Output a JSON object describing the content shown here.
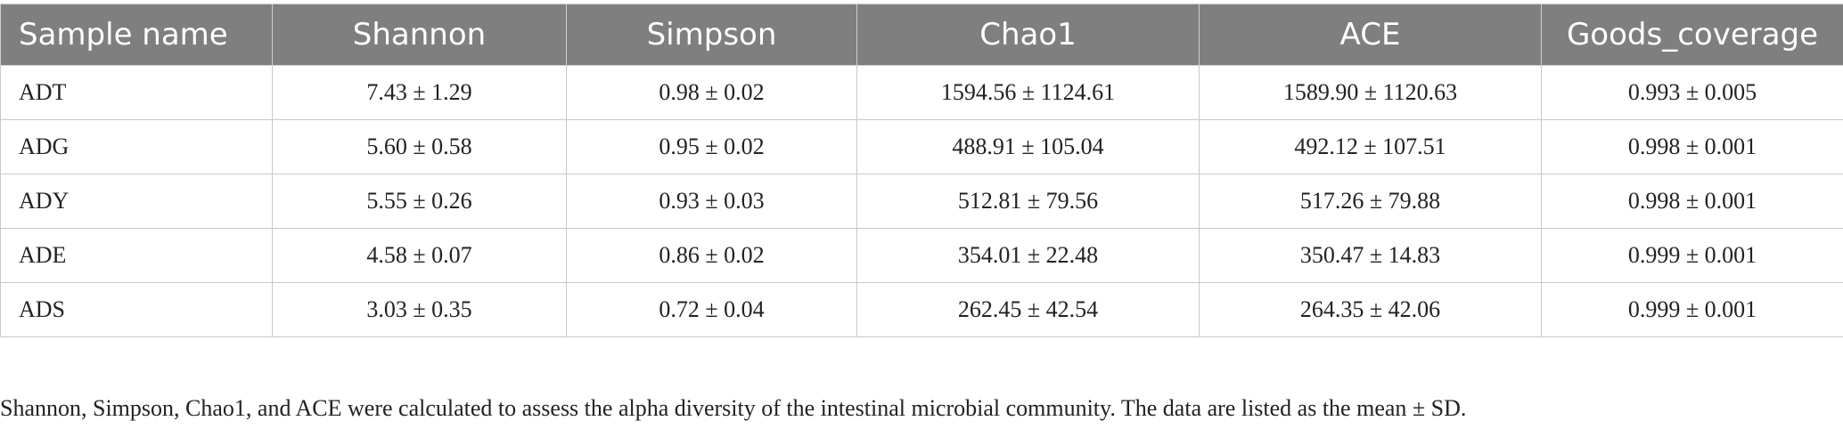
{
  "table": {
    "headers": [
      "Sample name",
      "Shannon",
      "Simpson",
      "Chao1",
      "ACE",
      "Goods_coverage"
    ],
    "rows": [
      [
        "ADT",
        "7.43 ± 1.29",
        "0.98 ± 0.02",
        "1594.56 ± 1124.61",
        "1589.90 ± 1120.63",
        "0.993 ± 0.005"
      ],
      [
        "ADG",
        "5.60 ± 0.58",
        "0.95 ± 0.02",
        "488.91 ± 105.04",
        "492.12 ± 107.51",
        "0.998 ± 0.001"
      ],
      [
        "ADY",
        "5.55 ± 0.26",
        "0.93 ± 0.03",
        "512.81 ± 79.56",
        "517.26 ± 79.88",
        "0.998 ± 0.001"
      ],
      [
        "ADE",
        "4.58 ± 0.07",
        "0.86 ± 0.02",
        "354.01 ± 22.48",
        "350.47 ± 14.83",
        "0.999 ± 0.001"
      ],
      [
        "ADS",
        "3.03 ± 0.35",
        "0.72 ± 0.04",
        "262.45 ± 42.54",
        "264.35 ± 42.06",
        "0.999 ± 0.001"
      ]
    ]
  },
  "footnote": "Shannon, Simpson, Chao1, and ACE were calculated to assess the alpha diversity of the intestinal microbial community. The data are listed as the mean ± SD.",
  "colors": {
    "header_background": "#7f7f7f",
    "header_text": "#ffffff",
    "grid_line": "#c8c8c8"
  }
}
